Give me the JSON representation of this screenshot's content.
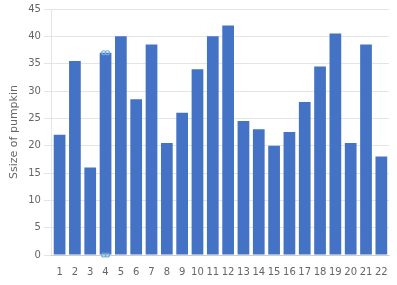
{
  "chart_data": {
    "type": "bar",
    "ylabel": "Ssize of pumpkin",
    "categories": [
      1,
      2,
      3,
      4,
      5,
      6,
      7,
      8,
      9,
      10,
      11,
      12,
      13,
      14,
      15,
      16,
      17,
      18,
      19,
      20,
      21,
      22
    ],
    "values": [
      22,
      35.5,
      16,
      37,
      40,
      28.5,
      38.5,
      20.5,
      26,
      34,
      40,
      42,
      24.5,
      23,
      20,
      22.5,
      28,
      34.5,
      40.5,
      20.5,
      38.5,
      18
    ],
    "color": "#4472C4",
    "outliers": {
      "x": [
        4,
        4
      ],
      "y": [
        37,
        0
      ],
      "color": "#6BAED6",
      "marker": "circle"
    },
    "ylim": [
      0,
      45
    ],
    "yticks": [
      0,
      5,
      10,
      15,
      20,
      25,
      30,
      35,
      40,
      45
    ],
    "grid": true
  }
}
